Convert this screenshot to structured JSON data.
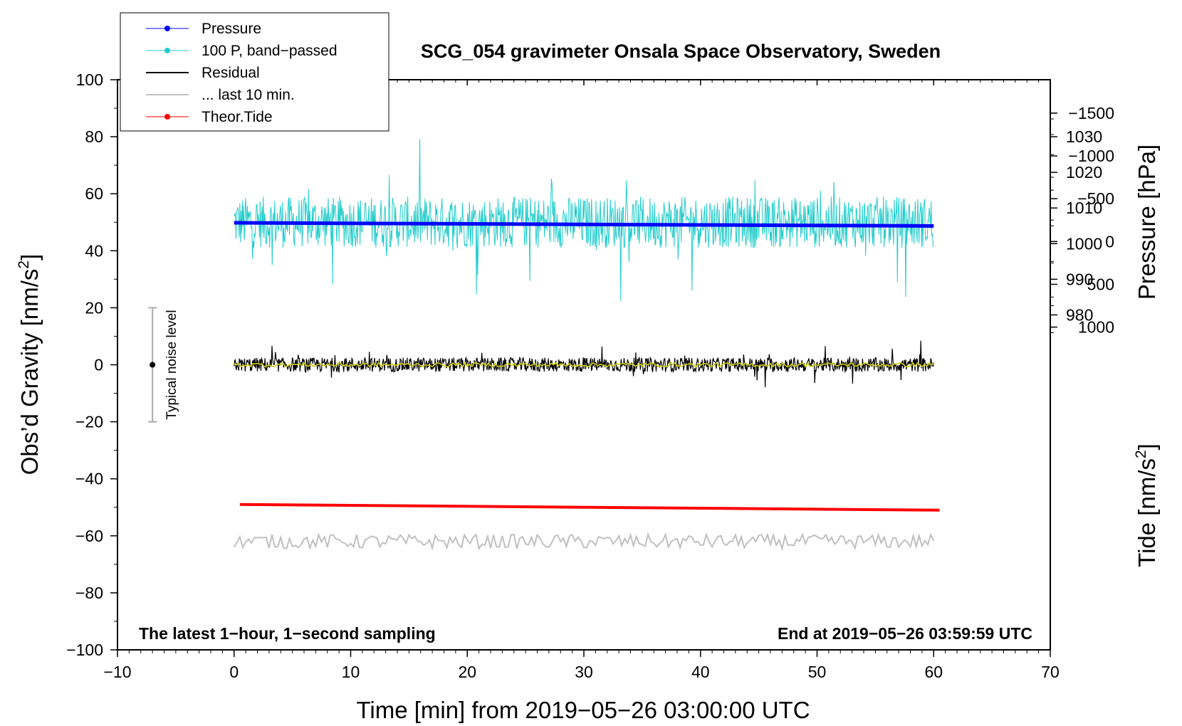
{
  "chart_data": {
    "type": "line",
    "title": "SCG_054 gravimeter Onsala Space Observatory, Sweden",
    "xlabel": "Time [min] from 2019−05−26 03:00:00 UTC",
    "ylabel_left_main": "Obs’d Gravity [nm/s",
    "ylabel_left_sup": "2",
    "ylabel_left_end": "]",
    "ylabel_right_top": "Pressure [hPa]",
    "ylabel_right_bottom_main": "Tide [nm/s",
    "ylabel_right_bottom_sup": "2",
    "ylabel_right_bottom_end": "]",
    "xlim": [
      -10,
      70
    ],
    "ylim_left": [
      -100,
      100
    ],
    "pressure_axis": {
      "ticks": [
        980,
        990,
        1000,
        1010,
        1020,
        1030
      ],
      "value_at_gravity_0": 966,
      "hpa_per_gravity_unit": 0.8
    },
    "tide_axis": {
      "ticks": [
        -1500,
        -1000,
        -500,
        0,
        500,
        1000
      ],
      "value_at_gravity_0": 1440,
      "tide_per_gravity_unit": -33.3
    },
    "x_ticks": [
      -10,
      0,
      10,
      20,
      30,
      40,
      50,
      60,
      70
    ],
    "x_tick_labels": [
      "−10",
      "0",
      "10",
      "20",
      "30",
      "40",
      "50",
      "60",
      "70"
    ],
    "y_ticks": [
      -100,
      -80,
      -60,
      -40,
      -20,
      0,
      20,
      40,
      60,
      80,
      100
    ],
    "y_tick_labels": [
      "−100",
      "−80",
      "−60",
      "−40",
      "−20",
      "0",
      "20",
      "40",
      "60",
      "80",
      "100"
    ],
    "pressure_tick_labels": [
      "980",
      "990",
      "1000",
      "1010",
      "1020",
      "1030"
    ],
    "tide_tick_labels": [
      "−1500",
      "−1000",
      "−500",
      "0",
      "500",
      "1000"
    ],
    "series": [
      {
        "name": "Pressure",
        "color": "#0000ff",
        "style": "line-dots",
        "x": [
          0,
          60
        ],
        "y_gravity": [
          49.8,
          48.7
        ]
      },
      {
        "name": "100 P, band−passed",
        "color": "#22cccc",
        "style": "noisy",
        "x_range": [
          0,
          60
        ],
        "center": 50,
        "amplitude": 9
      },
      {
        "name": "Residual",
        "color": "#000000",
        "style": "noisy",
        "x_range": [
          0,
          60
        ],
        "center": 0,
        "amplitude": 2.5
      },
      {
        "name": "... last 10 min.",
        "color": "#c0c0c0",
        "style": "noisy",
        "x_range": [
          0,
          60
        ],
        "center": -62,
        "amplitude": 2.5
      },
      {
        "name": "Theor.Tide",
        "color": "#ff0000",
        "style": "line-dots",
        "x": [
          0.5,
          60.5
        ],
        "y_gravity": [
          -49,
          -51
        ]
      }
    ],
    "smoothed_residual": {
      "color": "#cccc00",
      "center": 0
    },
    "noise_bar": {
      "label": "Typical noise level",
      "x": -7,
      "ymin": -20,
      "ymax": 20,
      "center": 0
    },
    "notes": {
      "bottom_left": "The latest 1−hour, 1−second sampling",
      "bottom_right": "End at 2019−05−26 03:59:59 UTC"
    },
    "legend": {
      "placement": "top-left",
      "entries": [
        {
          "label": "Pressure",
          "color": "#0000ff",
          "marker": true
        },
        {
          "label": "100 P, band−passed",
          "color": "#22cccc",
          "marker": true
        },
        {
          "label": "Residual",
          "color": "#000000",
          "marker": false
        },
        {
          "label": "... last 10 min.",
          "color": "#c0c0c0",
          "marker": false
        },
        {
          "label": "Theor.Tide",
          "color": "#ff0000",
          "marker": true
        }
      ]
    },
    "grid": false
  }
}
